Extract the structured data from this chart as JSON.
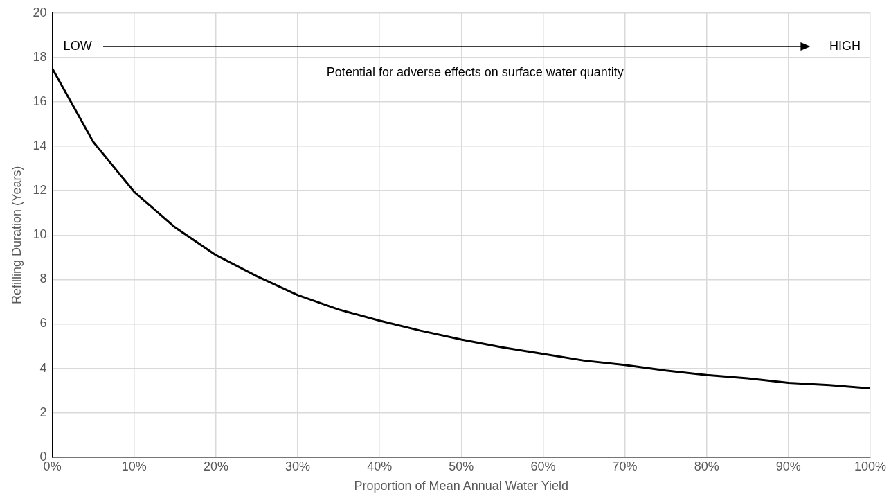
{
  "chart_data": {
    "type": "line",
    "xlabel": "Proportion of Mean Annual Water Yield",
    "ylabel": "Refilling Duration (Years)",
    "x": [
      0,
      5,
      10,
      15,
      20,
      25,
      30,
      35,
      40,
      45,
      50,
      55,
      60,
      65,
      70,
      75,
      80,
      85,
      90,
      95,
      100
    ],
    "series": [
      {
        "color": "#000000",
        "values": [
          17.5,
          14.2,
          11.95,
          10.35,
          9.1,
          8.15,
          7.3,
          6.65,
          6.15,
          5.7,
          5.3,
          4.95,
          4.65,
          4.35,
          4.15,
          3.9,
          3.7,
          3.55,
          3.35,
          3.25,
          3.1
        ]
      }
    ],
    "xlim": [
      0,
      100
    ],
    "xticks": [
      {
        "value": 0,
        "label": "0%"
      },
      {
        "value": 10,
        "label": "10%"
      },
      {
        "value": 20,
        "label": "20%"
      },
      {
        "value": 30,
        "label": "30%"
      },
      {
        "value": 40,
        "label": "40%"
      },
      {
        "value": 50,
        "label": "50%"
      },
      {
        "value": 60,
        "label": "60%"
      },
      {
        "value": 70,
        "label": "70%"
      },
      {
        "value": 80,
        "label": "80%"
      },
      {
        "value": 90,
        "label": "90%"
      },
      {
        "value": 100,
        "label": "100%"
      }
    ],
    "ylim": [
      0,
      20
    ],
    "yticks": [
      0,
      2,
      4,
      6,
      8,
      10,
      12,
      14,
      16,
      18,
      20
    ],
    "grid": true,
    "legend": false,
    "marker": "none",
    "line_style": "solid",
    "annotations": [
      "LOW",
      "HIGH",
      "Potential for adverse effects on surface water quantity"
    ]
  }
}
